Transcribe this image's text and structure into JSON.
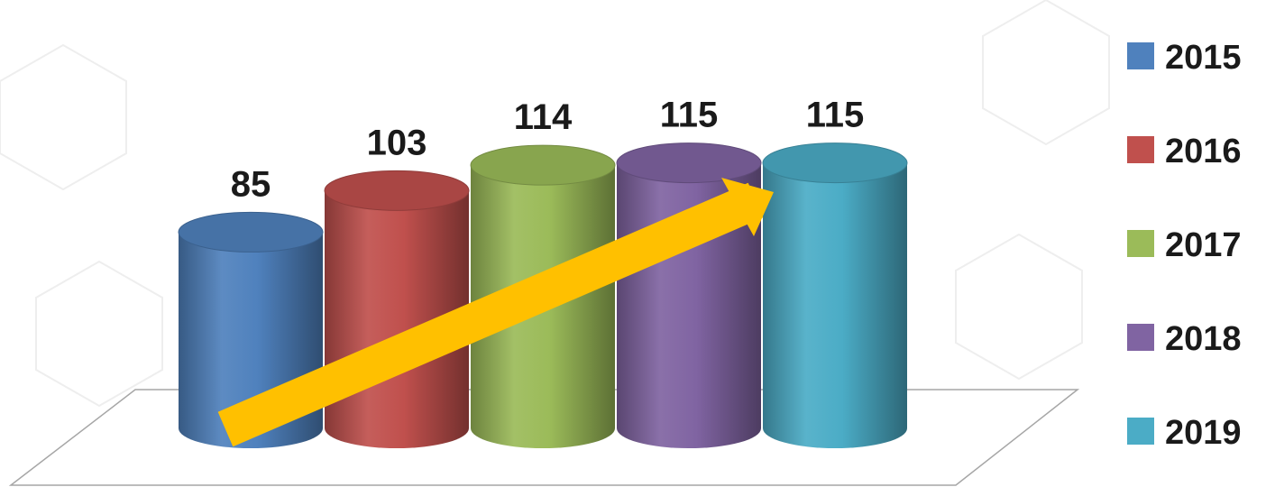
{
  "chart_data": {
    "type": "bar",
    "style": "3d-cylinder",
    "title": "",
    "xlabel": "",
    "ylabel": "",
    "categories": [
      "2015",
      "2016",
      "2017",
      "2018",
      "2019"
    ],
    "values": [
      85,
      103,
      114,
      115,
      115
    ],
    "colors": [
      "#4F81BD",
      "#C0504D",
      "#9BBB59",
      "#8064A2",
      "#4BACC6"
    ],
    "data_labels": true,
    "legend": {
      "position": "right",
      "entries": [
        "2015",
        "2016",
        "2017",
        "2018",
        "2019"
      ]
    },
    "grid": false,
    "annotation": {
      "kind": "trend-arrow",
      "color": "#FFC000",
      "direction": "up-right"
    }
  }
}
